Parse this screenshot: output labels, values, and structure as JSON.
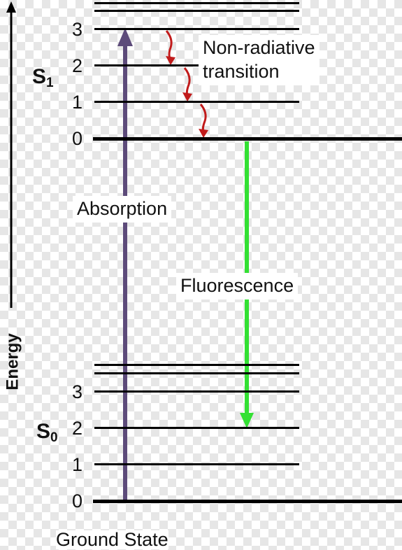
{
  "axis": {
    "label": "Energy"
  },
  "states": {
    "s1": {
      "main": "S",
      "sub": "1"
    },
    "s0": {
      "main": "S",
      "sub": "0"
    }
  },
  "s1_levels": [
    "3",
    "2",
    "1",
    "0"
  ],
  "s0_levels": [
    "3",
    "2",
    "1",
    "0"
  ],
  "labels": {
    "nonrad_line1": "Non-radiative",
    "nonrad_line2": "transition",
    "absorption": "Absorption",
    "fluorescence": "Fluorescence",
    "ground": "Ground State"
  },
  "colors": {
    "absorption": "#5d4b7a",
    "fluorescence": "#33e033",
    "nonradiative": "#c11b1b",
    "levels": "#000000"
  }
}
